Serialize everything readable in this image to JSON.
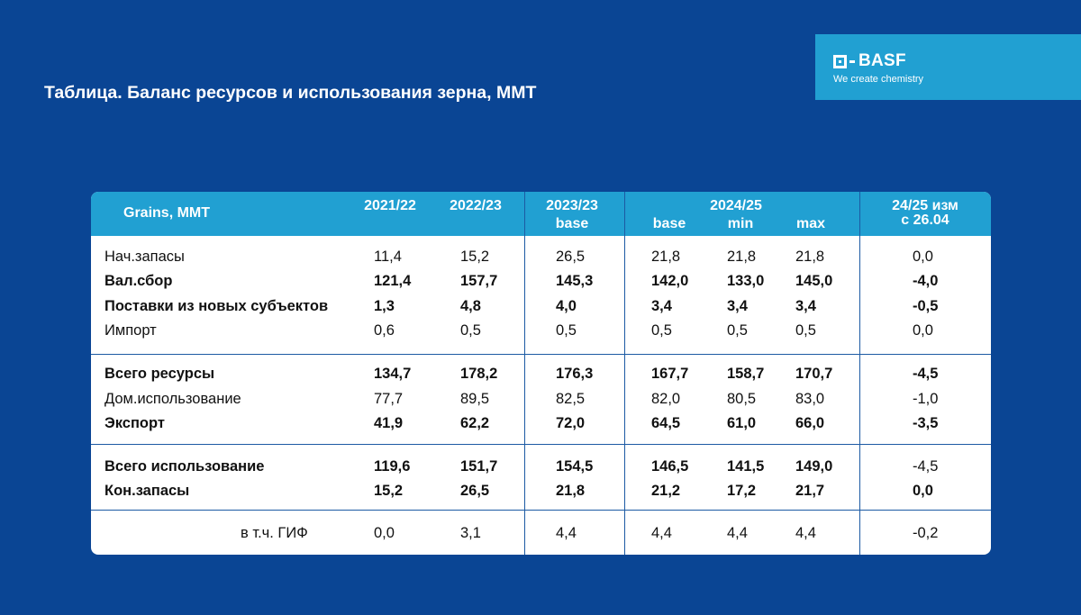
{
  "title": "Таблица. Баланс ресурсов и использования зерна, ММТ",
  "logo": {
    "word": "BASF",
    "tagline": "We create chemistry"
  },
  "colors": {
    "background": "#0a4594",
    "accent": "#21a0d2",
    "card": "#ffffff",
    "divider": "#1c5aa3"
  },
  "table": {
    "header": {
      "label": "Grains, MMT",
      "y2122": "2021/22",
      "y2223": "2022/23",
      "y2324_year": "2023/23",
      "y2324_sub": "base",
      "y2425_year": "2024/25",
      "y2425_base": "base",
      "y2425_min": "min",
      "y2425_max": "max",
      "chg_line1": "24/25 изм",
      "chg_line2": "с 26.04"
    },
    "rows": [
      {
        "label": "Нач.запасы",
        "bold": false,
        "values": [
          "11,4",
          "15,2",
          "26,5",
          "21,8",
          "21,8",
          "21,8",
          "0,0"
        ]
      },
      {
        "label": "Вал.сбор",
        "bold": true,
        "values": [
          "121,4",
          "157,7",
          "145,3",
          "142,0",
          "133,0",
          "145,0",
          "-4,0"
        ]
      },
      {
        "label": "Поставки из новых субъектов",
        "bold": true,
        "values": [
          "1,3",
          "4,8",
          "4,0",
          "3,4",
          "3,4",
          "3,4",
          "-0,5"
        ]
      },
      {
        "label": "Импорт",
        "bold": false,
        "values": [
          "0,6",
          "0,5",
          "0,5",
          "0,5",
          "0,5",
          "0,5",
          "0,0"
        ]
      },
      {
        "label": "Всего ресурсы",
        "bold": true,
        "values": [
          "134,7",
          "178,2",
          "176,3",
          "167,7",
          "158,7",
          "170,7",
          "-4,5"
        ]
      },
      {
        "label": "Дом.использование",
        "bold": false,
        "values": [
          "77,7",
          "89,5",
          "82,5",
          "82,0",
          "80,5",
          "83,0",
          "-1,0"
        ]
      },
      {
        "label": "Экспорт",
        "bold": true,
        "values": [
          "41,9",
          "62,2",
          "72,0",
          "64,5",
          "61,0",
          "66,0",
          "-3,5"
        ]
      },
      {
        "label": "Всего использование",
        "bold": true,
        "values": [
          "119,6",
          "151,7",
          "154,5",
          "146,5",
          "141,5",
          "149,0",
          "-4,5"
        ],
        "last_bold": false
      },
      {
        "label": "Кон.запасы",
        "bold": true,
        "values": [
          "15,2",
          "26,5",
          "21,8",
          "21,2",
          "17,2",
          "21,7",
          "0,0"
        ]
      },
      {
        "label": "в т.ч. ГИФ",
        "bold": false,
        "values": [
          "0,0",
          "3,1",
          "4,4",
          "4,4",
          "4,4",
          "4,4",
          "-0,2"
        ]
      }
    ]
  }
}
